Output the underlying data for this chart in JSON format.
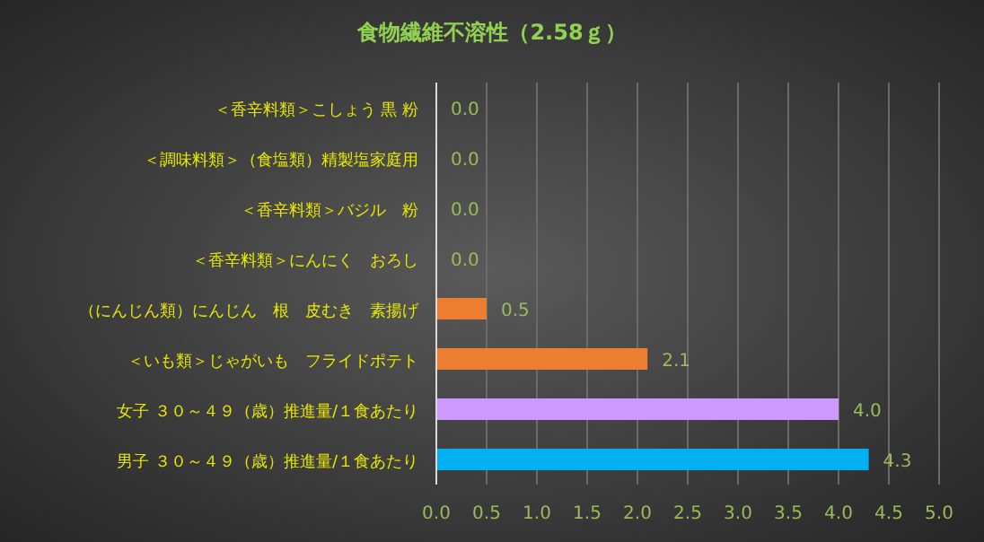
{
  "chart_data": {
    "type": "bar",
    "orientation": "horizontal",
    "title": "食物繊維不溶性（2.58ｇ）",
    "categories": [
      "＜香辛料類＞こしょう 黒 粉",
      "＜調味料類＞（食塩類）精製塩家庭用",
      "＜香辛料類＞バジル　粉",
      "＜香辛料類＞にんにく　おろし",
      "（にんじん類）にんじん　根　皮むき　素揚げ",
      "＜いも類＞じゃがいも　フライドポテト",
      "女子 ３０～４９（歳）推進量/１食あたり",
      "男子 ３０～４９（歳）推進量/１食あたり"
    ],
    "values": [
      0,
      0,
      0,
      0,
      0.5,
      2.1,
      4.0,
      4.3
    ],
    "value_labels": [
      "0.0",
      "0.0",
      "0.0",
      "0.0",
      "0.5",
      "2.1",
      "4.0",
      "4.3"
    ],
    "colors": [
      "#ed7d31",
      "#ed7d31",
      "#ed7d31",
      "#ed7d31",
      "#ed7d31",
      "#ed7d31",
      "#cc99ff",
      "#00b0f0"
    ],
    "xlim": [
      0,
      5
    ],
    "xticks": [
      {
        "value": 0,
        "label": "0.0"
      },
      {
        "value": 0.5,
        "label": "0.5"
      },
      {
        "value": 1,
        "label": "1.0"
      },
      {
        "value": 1.5,
        "label": "1.5"
      },
      {
        "value": 2,
        "label": "2.0"
      },
      {
        "value": 2.5,
        "label": "2.5"
      },
      {
        "value": 3,
        "label": "3.0"
      },
      {
        "value": 3.5,
        "label": "3.5"
      },
      {
        "value": 4,
        "label": "4.0"
      },
      {
        "value": 4.5,
        "label": "4.5"
      },
      {
        "value": 5,
        "label": "5.0"
      }
    ],
    "grid": "x"
  }
}
